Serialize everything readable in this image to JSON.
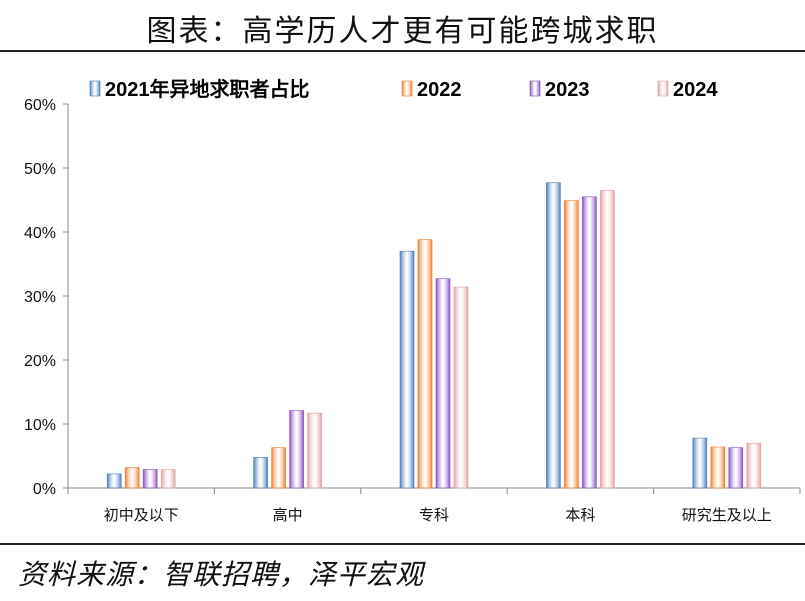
{
  "title": "图表：高学历人才更有可能跨城求职",
  "source": "资料来源：智联招聘，泽平宏观",
  "chart_data": {
    "type": "bar",
    "title": "",
    "xlabel": "",
    "ylabel": "",
    "categories": [
      "初中及以下",
      "高中",
      "专科",
      "本科",
      "研究生及以上"
    ],
    "ylim": [
      0,
      60
    ],
    "yticks": [
      "0%",
      "10%",
      "20%",
      "30%",
      "40%",
      "50%",
      "60%"
    ],
    "grid": false,
    "legend_position": "top",
    "series": [
      {
        "name": "2021年异地求职者占比",
        "color": "#4a7ebb",
        "values": [
          2.2,
          4.8,
          37.0,
          47.7,
          7.8
        ]
      },
      {
        "name": "2022",
        "color": "#f07f2e",
        "values": [
          3.2,
          6.3,
          38.8,
          44.9,
          6.4
        ]
      },
      {
        "name": "2023",
        "color": "#8a4fc0",
        "values": [
          2.9,
          12.1,
          32.7,
          45.5,
          6.3
        ]
      },
      {
        "name": "2024",
        "color": "#e0a3a3",
        "values": [
          2.9,
          11.7,
          31.4,
          46.5,
          7.0
        ]
      }
    ]
  }
}
